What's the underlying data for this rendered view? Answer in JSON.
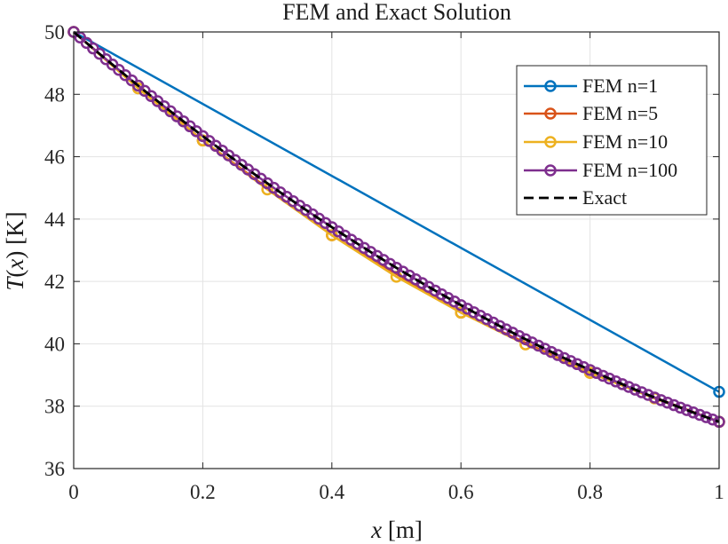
{
  "chart_data": {
    "type": "line",
    "title": "FEM and Exact Solution",
    "xlabel_var": "x",
    "xlabel_unit": " [m]",
    "ylabel_func": "T",
    "ylabel_open": "(",
    "ylabel_var": "x",
    "ylabel_close": ")",
    "ylabel_unit": " [K]",
    "xlim": [
      0,
      1
    ],
    "ylim": [
      36,
      50
    ],
    "xticks": [
      0,
      0.2,
      0.4,
      0.6,
      0.8,
      1
    ],
    "yticks": [
      36,
      38,
      40,
      42,
      44,
      46,
      48,
      50
    ],
    "xtick_labels": [
      "0",
      "0.2",
      "0.4",
      "0.6",
      "0.8",
      "1"
    ],
    "ytick_labels": [
      "36",
      "38",
      "40",
      "42",
      "44",
      "46",
      "48",
      "50"
    ],
    "grid": true,
    "legend_position": "top-right",
    "series": [
      {
        "name": "FEM n=1",
        "color": "#0072BD",
        "marker": "circle",
        "style": "solid",
        "x": [
          0,
          1
        ],
        "y": [
          50,
          38.46
        ]
      },
      {
        "name": "FEM n=5",
        "color": "#D95319",
        "marker": "circle",
        "style": "solid",
        "x": [
          0,
          0.2,
          0.4,
          0.6,
          0.8,
          1
        ],
        "y": [
          50,
          46.52,
          43.48,
          41.0,
          39.07,
          37.5
        ]
      },
      {
        "name": "FEM n=10",
        "color": "#EDB120",
        "marker": "circle",
        "style": "solid",
        "x": [
          0,
          0.1,
          0.2,
          0.3,
          0.4,
          0.5,
          0.6,
          0.7,
          0.8,
          0.9,
          1
        ],
        "y": [
          50,
          48.19,
          46.52,
          44.95,
          43.48,
          42.15,
          41.0,
          39.98,
          39.07,
          38.25,
          37.5
        ]
      },
      {
        "name": "FEM n=100",
        "color": "#7E2F8E",
        "marker": "circle",
        "style": "solid",
        "model": {
          "a": 5.25,
          "b": -17.75,
          "c": 50,
          "n": 100
        }
      },
      {
        "name": "Exact",
        "color": "#000000",
        "marker": "none",
        "style": "dashed",
        "model": {
          "a": 5.25,
          "b": -17.75,
          "c": 50,
          "n": 100
        }
      }
    ]
  }
}
